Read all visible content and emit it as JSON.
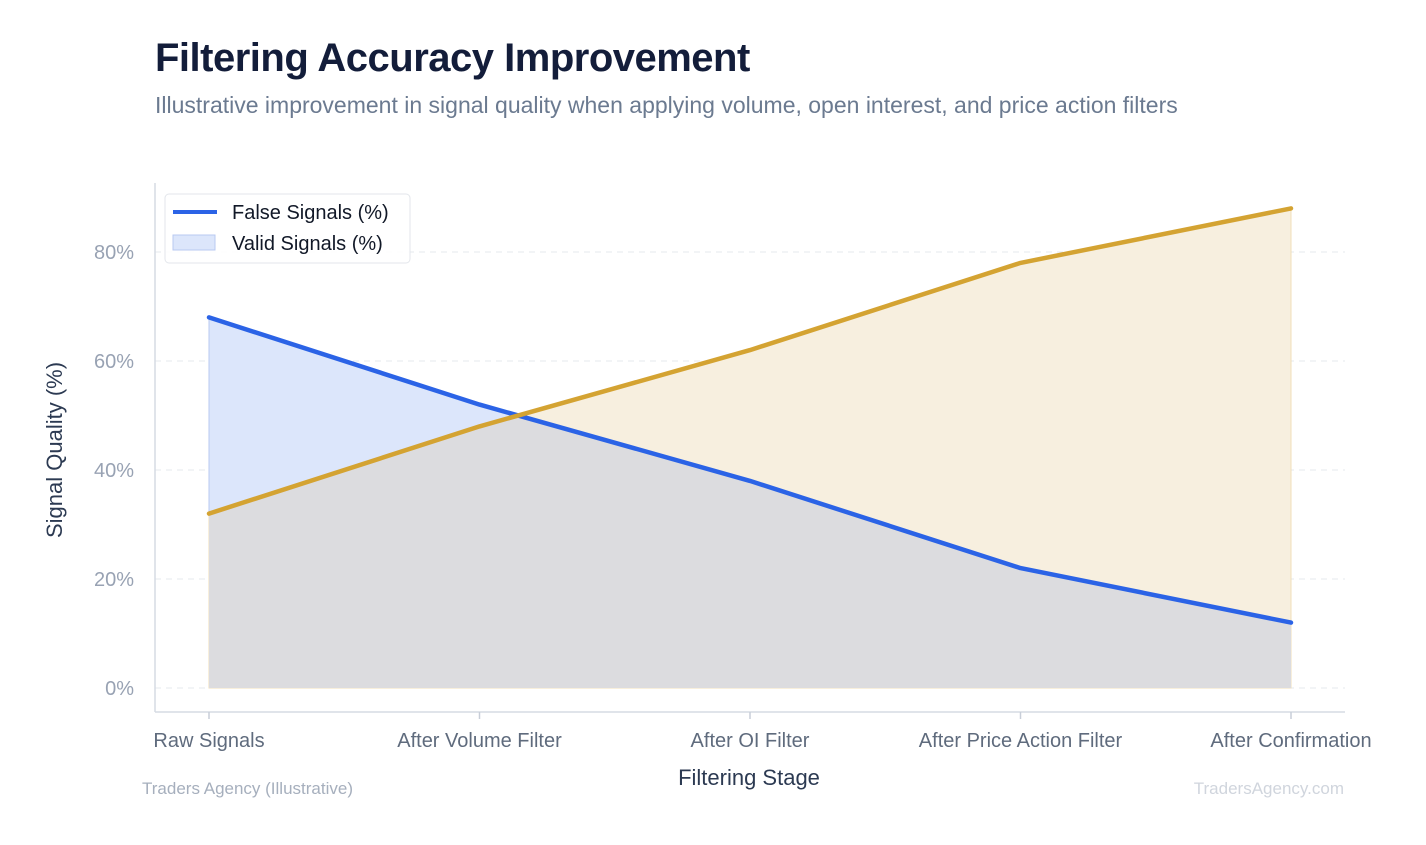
{
  "header": {
    "title": "Filtering Accuracy Improvement",
    "subtitle": "Illustrative improvement in signal quality when applying volume, open interest, and price action filters"
  },
  "footer": {
    "source": "Traders Agency (Illustrative)",
    "watermark": "TradersAgency.com"
  },
  "colors": {
    "false_line": "#2b63e6",
    "false_fill": "#dce6fb",
    "valid_line": "#d4a332",
    "valid_fill": "#f7efdf",
    "overlap_fill": "#dcdcdf"
  },
  "chart_data": {
    "type": "area",
    "categories": [
      "Raw Signals",
      "After Volume Filter",
      "After OI Filter",
      "After Price Action Filter",
      "After Confirmation"
    ],
    "series": [
      {
        "name": "False Signals (%)",
        "values": [
          68,
          52,
          38,
          22,
          12
        ]
      },
      {
        "name": "Valid Signals (%)",
        "values": [
          32,
          48,
          62,
          78,
          88
        ]
      }
    ],
    "xlabel": "Filtering Stage",
    "ylabel": "Signal Quality (%)",
    "ylim": [
      0,
      92
    ],
    "yticks": [
      0,
      20,
      40,
      60,
      80
    ],
    "ytick_labels": [
      "0%",
      "20%",
      "40%",
      "60%",
      "80%"
    ],
    "grid": true,
    "legend": "top-left"
  }
}
